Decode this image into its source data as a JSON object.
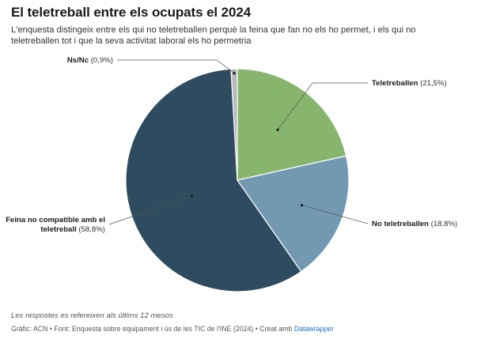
{
  "chart_data": {
    "type": "pie",
    "title": "El teletreball entre els ocupats el 2024",
    "subtitle": "L'enquesta distingeix entre els qui no teletreballen perquè la feina que fan no els ho permet, i els qui no teletreballen tot i que la seva activitat laboral els ho permetria",
    "slices": [
      {
        "label": "Teletreballen",
        "value": 21.5,
        "value_label": "(21,5%)",
        "color": "#87b56e"
      },
      {
        "label": "No teletreballen",
        "value": 18.8,
        "value_label": "(18,8%)",
        "color": "#7398b2"
      },
      {
        "label": "Feina no compatible amb el teletreball",
        "label_lines": [
          "Feina no compatible amb el",
          "teletreball"
        ],
        "value": 58.8,
        "value_label": "(58,8%)",
        "color": "#2f4b5f"
      },
      {
        "label": "Ns/Nc",
        "value": 0.9,
        "value_label": "(0,9%)",
        "color": "#b7b7b7"
      }
    ],
    "note": "Les respostes es refereixen als últims 12 mesos",
    "credits_text": "Gràfic: ACN • Font: Enquesta sobre equipament i ús de les TIC de l'INE (2024) • Creat amb ",
    "credits_maker": "Datawrapper"
  }
}
